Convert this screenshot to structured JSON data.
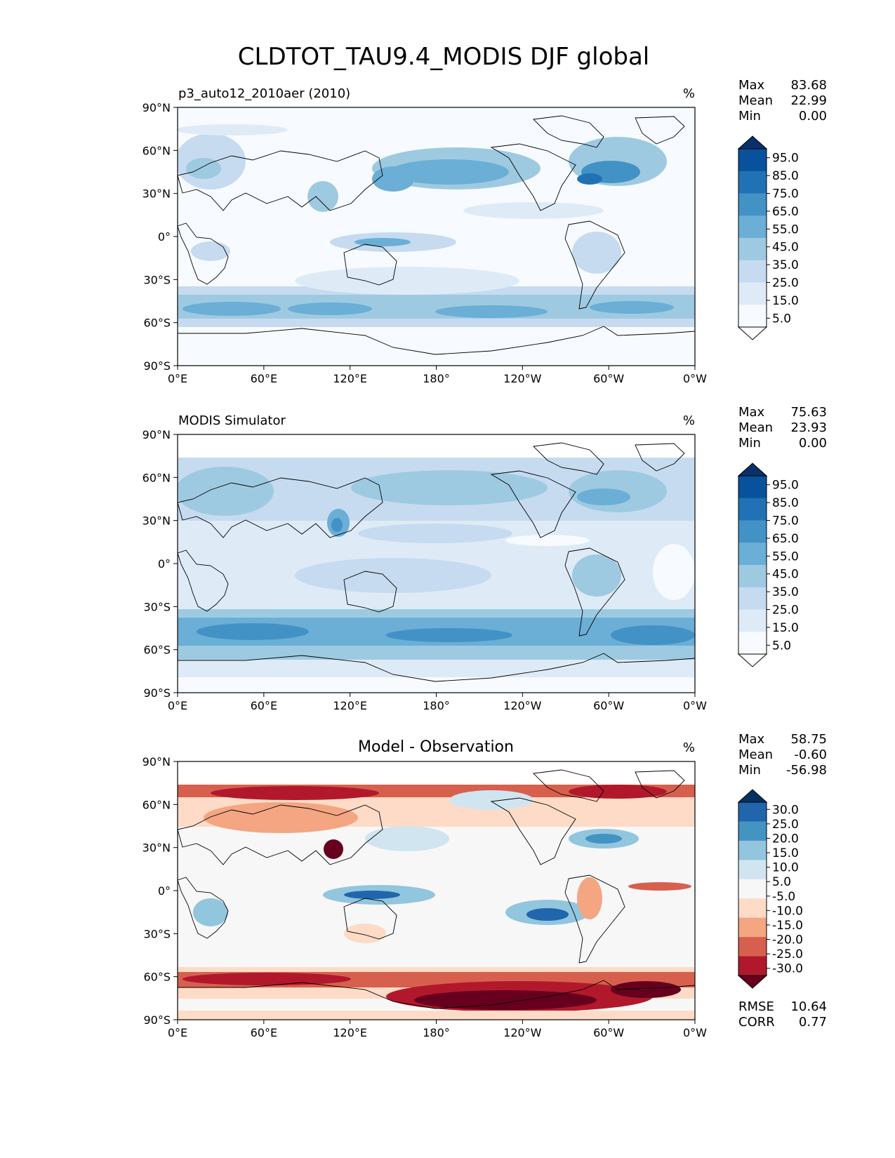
{
  "title": "CLDTOT_TAU9.4_MODIS DJF global",
  "units": "%",
  "lat_ticks": [
    "90°N",
    "60°N",
    "30°N",
    "0°",
    "30°S",
    "60°S",
    "90°S"
  ],
  "lon_ticks": [
    "0°E",
    "60°E",
    "120°E",
    "180°",
    "120°W",
    "60°W",
    "0°W"
  ],
  "colors": {
    "blues": [
      "#ffffff",
      "#f7fbff",
      "#deebf7",
      "#c6dbef",
      "#9ecae1",
      "#6baed6",
      "#4292c6",
      "#2171b5",
      "#08519c",
      "#08306b"
    ],
    "diverging": [
      "#67001f",
      "#b2182b",
      "#d6604d",
      "#f4a582",
      "#fddbc7",
      "#f7f7f7",
      "#d1e5f0",
      "#92c5de",
      "#4393c3",
      "#2166ac",
      "#053061"
    ]
  },
  "panels": [
    {
      "id": "test",
      "title_left": "p3_auto12_2010aer (2010)",
      "title_center": "",
      "stats": [
        {
          "label": "Max",
          "value": "83.68"
        },
        {
          "label": "Mean",
          "value": "22.99"
        },
        {
          "label": "Min",
          "value": "0.00"
        }
      ],
      "colorbar_labels": [
        "95.0",
        "85.0",
        "75.0",
        "65.0",
        "55.0",
        "45.0",
        "35.0",
        "25.0",
        "15.0",
        "5.0"
      ],
      "metrics": []
    },
    {
      "id": "reference",
      "title_left": "MODIS Simulator",
      "title_center": "",
      "stats": [
        {
          "label": "Max",
          "value": "75.63"
        },
        {
          "label": "Mean",
          "value": "23.93"
        },
        {
          "label": "Min",
          "value": "0.00"
        }
      ],
      "colorbar_labels": [
        "95.0",
        "85.0",
        "75.0",
        "65.0",
        "55.0",
        "45.0",
        "35.0",
        "25.0",
        "15.0",
        "5.0"
      ],
      "metrics": []
    },
    {
      "id": "difference",
      "title_left": "",
      "title_center": "Model - Observation",
      "stats": [
        {
          "label": "Max",
          "value": "58.75"
        },
        {
          "label": "Mean",
          "value": "-0.60"
        },
        {
          "label": "Min",
          "value": "-56.98"
        }
      ],
      "colorbar_labels": [
        "30.0",
        "25.0",
        "20.0",
        "15.0",
        "10.0",
        "5.0",
        "-5.0",
        "-10.0",
        "-15.0",
        "-20.0",
        "-25.0",
        "-30.0"
      ],
      "metrics": [
        {
          "label": "RMSE",
          "value": "10.64"
        },
        {
          "label": "CORR",
          "value": "0.77"
        }
      ]
    }
  ]
}
